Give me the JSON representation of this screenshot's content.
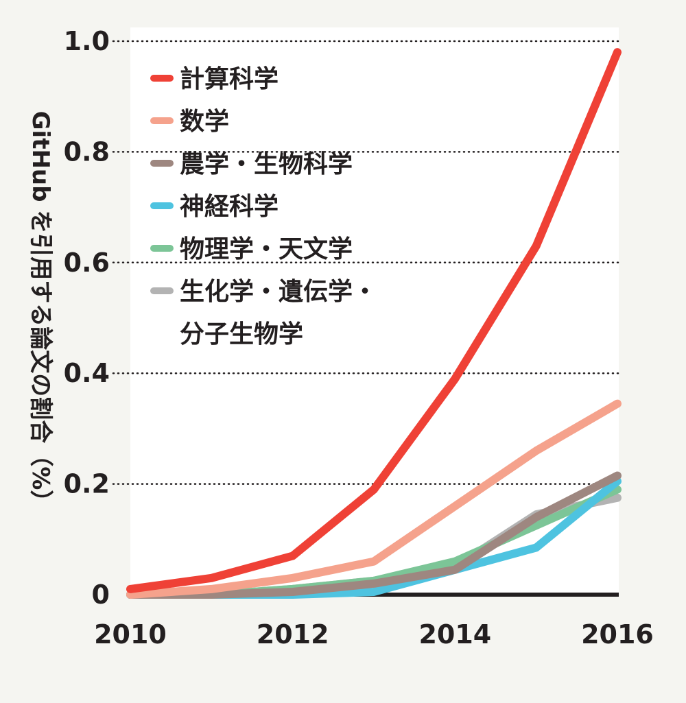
{
  "chart_data": {
    "type": "line",
    "title": "",
    "xlabel": "",
    "ylabel": "GitHub を引用する論文の割合（%）",
    "x": [
      2010,
      2011,
      2012,
      2013,
      2014,
      2015,
      2016
    ],
    "xticks": [
      "2010",
      "2012",
      "2014",
      "2016"
    ],
    "yticks": [
      "0",
      "0.2",
      "0.4",
      "0.6",
      "0.8",
      "1.0"
    ],
    "xlim": [
      2010,
      2016
    ],
    "ylim": [
      0,
      1.0
    ],
    "grid": "horizontal dotted",
    "legend_position": "top-left",
    "series": [
      {
        "name": "計算科学",
        "color": "#ef4136",
        "values": [
          0.01,
          0.03,
          0.07,
          0.19,
          0.39,
          0.63,
          0.98
        ]
      },
      {
        "name": "数学",
        "color": "#f5a28c",
        "values": [
          0.0,
          0.01,
          0.03,
          0.06,
          0.16,
          0.26,
          0.345
        ]
      },
      {
        "name": "農学・生物科学",
        "color": "#9e8780",
        "values": [
          0.0,
          0.0,
          0.005,
          0.02,
          0.045,
          0.14,
          0.215
        ]
      },
      {
        "name": "神経科学",
        "color": "#4ec3e0",
        "values": [
          0.0,
          0.0,
          0.0,
          0.005,
          0.045,
          0.085,
          0.205
        ]
      },
      {
        "name": "物理学・天文学",
        "color": "#7cc597",
        "values": [
          0.0,
          0.0,
          0.01,
          0.025,
          0.06,
          0.125,
          0.19
        ]
      },
      {
        "name": "生化学・遺伝学・\n分子生物学",
        "color": "#b3b3b3",
        "values": [
          0.0,
          0.0,
          0.01,
          0.025,
          0.05,
          0.145,
          0.175
        ]
      }
    ]
  }
}
